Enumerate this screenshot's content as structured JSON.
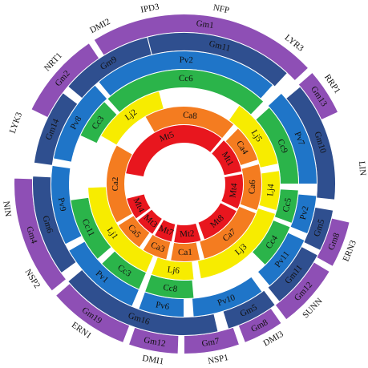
{
  "colors": {
    "purple": "#8e4fb5",
    "navy": "#2f4f8f",
    "blue": "#1f75c8",
    "green": "#2bb44a",
    "yellow": "#f7ec00",
    "orange": "#f47c20",
    "red": "#e8161e",
    "white": "#ffffff",
    "label_dark": "#111111"
  },
  "outer_labels": [
    {
      "name": "outer-label-nfp",
      "text": "NFP",
      "angle": 12
    },
    {
      "name": "outer-label-lyr3",
      "text": "LYR3",
      "angle": 38
    },
    {
      "name": "outer-label-rrp1",
      "text": "RRP1",
      "angle": 56
    },
    {
      "name": "outer-label-lin",
      "text": "LIN",
      "angle": 85
    },
    {
      "name": "outer-label-ern3",
      "text": "ERN3",
      "angle": 112
    },
    {
      "name": "outer-label-sunn",
      "text": "SUNN",
      "angle": 134
    },
    {
      "name": "outer-label-dmi3",
      "text": "DMI3",
      "angle": 150
    },
    {
      "name": "outer-label-nsp1",
      "text": "NSP1",
      "angle": 169
    },
    {
      "name": "outer-label-dmi1",
      "text": "DMI1",
      "angle": 190
    },
    {
      "name": "outer-label-ern1",
      "text": "ERN1",
      "angle": 215
    },
    {
      "name": "outer-label-nsp2",
      "text": "NSP2",
      "angle": 238
    },
    {
      "name": "outer-label-nin",
      "text": "NIN",
      "angle": 262
    },
    {
      "name": "outer-label-lyk3",
      "text": "LYK3",
      "angle": 290
    },
    {
      "name": "outer-label-nrt1",
      "text": "NRT1",
      "angle": 313
    },
    {
      "name": "outer-label-dmi2",
      "text": "DMI2",
      "angle": 332
    },
    {
      "name": "outer-label-ipd3",
      "text": "IPD3",
      "angle": 349
    }
  ],
  "rings": [
    {
      "name": "ring-1",
      "color": "purple",
      "segments": [
        {
          "label": "Gm1",
          "start": 328,
          "end": 47
        },
        {
          "label": "Gm13",
          "start": 49,
          "end": 65
        },
        {
          "label": "Gm8",
          "start": 103,
          "end": 119
        },
        {
          "label": "Gm12",
          "start": 121,
          "end": 143
        },
        {
          "label": "Gm8",
          "start": 145,
          "end": 159
        },
        {
          "label": "Gm7",
          "start": 161,
          "end": 180
        },
        {
          "label": "Gm12",
          "start": 182,
          "end": 199
        },
        {
          "label": "Gm19",
          "start": 201,
          "end": 229
        },
        {
          "label": "Gm4",
          "start": 231,
          "end": 272
        },
        {
          "label": "Gm2",
          "start": 296,
          "end": 326
        }
      ]
    },
    {
      "name": "ring-2",
      "color": "navy",
      "segments": [
        {
          "label": "Gm9",
          "start": 310,
          "end": 346
        },
        {
          "label": "Gm11",
          "start": 346,
          "end": 43
        },
        {
          "label": "Gm10",
          "start": 50,
          "end": 96
        },
        {
          "label": "Gm5",
          "start": 100,
          "end": 116
        },
        {
          "label": "Gm11",
          "start": 118,
          "end": 141
        },
        {
          "label": "Gm5",
          "start": 143,
          "end": 163
        },
        {
          "label": "Gm16",
          "start": 167,
          "end": 230
        },
        {
          "label": "Gm6",
          "start": 234,
          "end": 273
        },
        {
          "label": "Gm14",
          "start": 278,
          "end": 307
        }
      ]
    },
    {
      "name": "ring-3",
      "color": "blue",
      "segments": [
        {
          "label": "Pv2",
          "start": 320,
          "end": 42
        },
        {
          "label": "Pv7",
          "start": 47,
          "end": 90
        },
        {
          "label": "Pv2",
          "start": 95,
          "end": 112
        },
        {
          "label": "Pv11",
          "start": 115,
          "end": 140
        },
        {
          "label": "Pv10",
          "start": 144,
          "end": 176
        },
        {
          "label": "Pv6",
          "start": 180,
          "end": 200
        },
        {
          "label": "Pv1",
          "start": 203,
          "end": 240
        },
        {
          "label": "Pv9",
          "start": 243,
          "end": 278
        },
        {
          "label": "Pv8",
          "start": 281,
          "end": 318
        }
      ]
    },
    {
      "name": "ring-4",
      "color": "green",
      "segments": [
        {
          "label": "Cc6",
          "start": 318,
          "end": 44
        },
        {
          "label": "Cc9",
          "start": 48,
          "end": 90
        },
        {
          "label": "Cc5",
          "start": 93,
          "end": 110
        },
        {
          "label": "Cc4",
          "start": 112,
          "end": 135
        },
        {
          "label": "Cc8",
          "start": 175,
          "end": 200
        },
        {
          "label": "Cc3",
          "start": 203,
          "end": 226
        },
        {
          "label": "Cc11",
          "start": 229,
          "end": 262
        },
        {
          "label": "Cc3",
          "start": 295,
          "end": 316
        }
      ]
    },
    {
      "name": "ring-5",
      "color": "yellow",
      "segments": [
        {
          "label": "Lj2",
          "start": 300,
          "end": 345
        },
        {
          "label": "Lj5",
          "start": 35,
          "end": 78
        },
        {
          "label": "Lj4",
          "start": 82,
          "end": 106
        },
        {
          "label": "Lj3",
          "start": 108,
          "end": 170
        },
        {
          "label": "Lj6",
          "start": 174,
          "end": 200
        },
        {
          "label": "Lj1",
          "start": 203,
          "end": 268
        }
      ]
    },
    {
      "name": "ring-6",
      "color": "orange",
      "segments": [
        {
          "label": "Ca8",
          "start": 330,
          "end": 40
        },
        {
          "label": "Ca4",
          "start": 44,
          "end": 72
        },
        {
          "label": "Ca6",
          "start": 75,
          "end": 110
        },
        {
          "label": "Ca7",
          "start": 112,
          "end": 165
        },
        {
          "label": "Ca1",
          "start": 168,
          "end": 190
        },
        {
          "label": "Ca3",
          "start": 193,
          "end": 212
        },
        {
          "label": "Ca5",
          "start": 215,
          "end": 238
        },
        {
          "label": "Ca2",
          "start": 240,
          "end": 300
        }
      ]
    },
    {
      "name": "ring-7",
      "color": "red",
      "segments": [
        {
          "label": "Mt5",
          "start": 280,
          "end": 40
        },
        {
          "label": "Mt1",
          "start": 42,
          "end": 78
        },
        {
          "label": "Mt4",
          "start": 80,
          "end": 115
        },
        {
          "label": "Mt8",
          "start": 117,
          "end": 160
        },
        {
          "label": "Mt2",
          "start": 163,
          "end": 190
        },
        {
          "label": "Mt7",
          "start": 192,
          "end": 210
        },
        {
          "label": "Mt3",
          "start": 212,
          "end": 232
        },
        {
          "label": "Mt4",
          "start": 234,
          "end": 256
        }
      ]
    }
  ]
}
